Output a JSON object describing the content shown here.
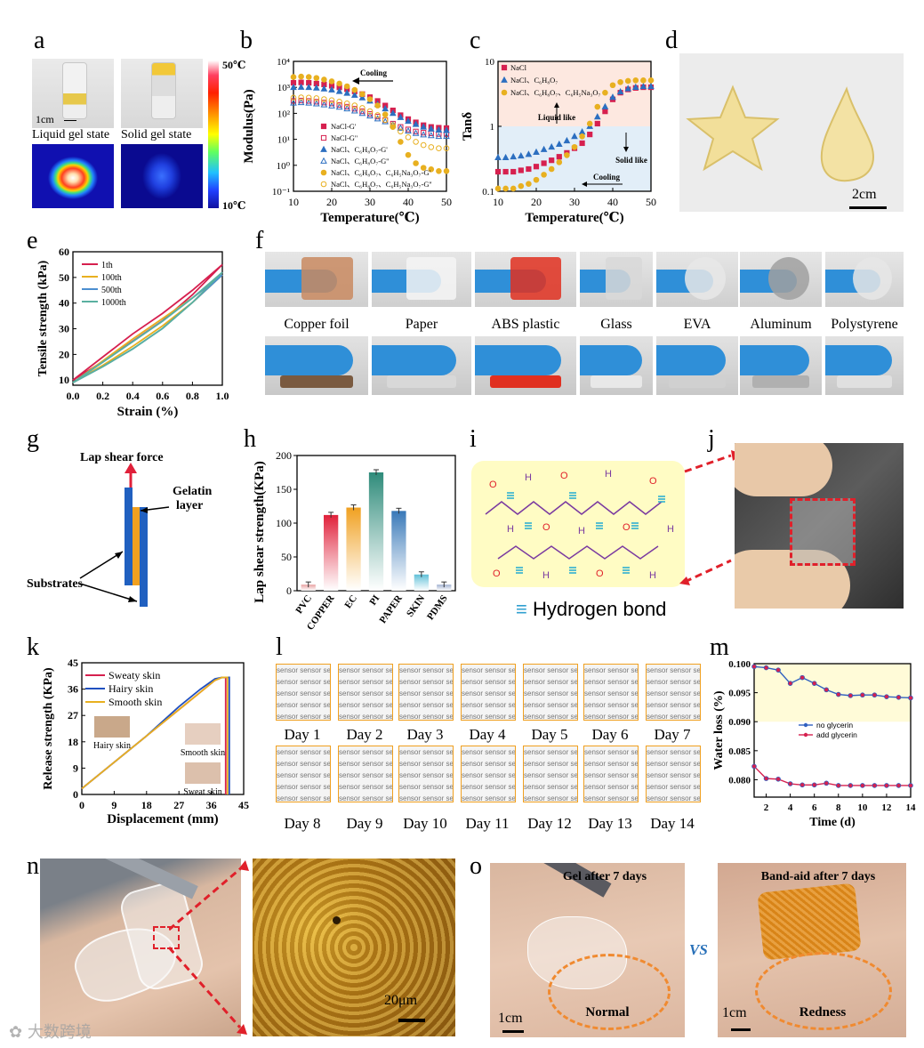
{
  "labels": {
    "a": "a",
    "b": "b",
    "c": "c",
    "d": "d",
    "e": "e",
    "f": "f",
    "g": "g",
    "h": "h",
    "i": "i",
    "j": "j",
    "k": "k",
    "l": "l",
    "m": "m",
    "n": "n",
    "o": "o"
  },
  "panel_a": {
    "scale": "1cm",
    "liquid": "Liquid gel state",
    "solid": "Solid gel state",
    "cbar_top": "50℃",
    "cbar_bottom": "10℃"
  },
  "panel_d": {
    "scale": "2cm"
  },
  "panel_f": {
    "materials": [
      "Copper foil",
      "Paper",
      "ABS plastic",
      "Glass",
      "EVA",
      "Aluminum",
      "Polystyrene"
    ]
  },
  "panel_g": {
    "force": "Lap shear force",
    "gelatin1": "Gelatin",
    "gelatin2": "layer",
    "substrates": "Substrates"
  },
  "panel_i": {
    "legend": "Hydrogen bond"
  },
  "panel_l": {
    "sensor_text": "sensor sensor se",
    "days_row1": [
      "Day 1",
      "Day 2",
      "Day 3",
      "Day 4",
      "Day 5",
      "Day 6",
      "Day 7"
    ],
    "days_row2": [
      "Day 8",
      "Day 9",
      "Day 10",
      "Day 11",
      "Day 12",
      "Day 13",
      "Day 14"
    ]
  },
  "panel_n": {
    "scale": "20μm"
  },
  "panel_o": {
    "gel_title": "Gel after 7 days",
    "gel_state": "Normal",
    "vs": "VS",
    "band_title": "Band-aid after 7 days",
    "band_state": "Redness",
    "scale": "1cm"
  },
  "watermark": "大数跨境",
  "chart_data": [
    {
      "id": "b",
      "type": "scatter",
      "xlabel": "Temperature(℃)",
      "ylabel": "Modulus(Pa)",
      "xlim": [
        10,
        50
      ],
      "ylim_log": [
        -1,
        4
      ],
      "xticks": [
        10,
        20,
        30,
        40,
        50
      ],
      "yticks": [
        "10⁻¹",
        "10⁰",
        "10¹",
        "10²",
        "10³",
        "10⁴"
      ],
      "annotation": "Cooling",
      "x": [
        10,
        12,
        14,
        16,
        18,
        20,
        22,
        24,
        26,
        28,
        30,
        32,
        34,
        36,
        38,
        40,
        42,
        44,
        46,
        48,
        50
      ],
      "series": [
        {
          "name": "NaCl-G'",
          "color": "#d6204f",
          "marker": "square",
          "values": [
            1500,
            1550,
            1500,
            1400,
            1300,
            1150,
            1000,
            850,
            700,
            550,
            420,
            300,
            200,
            130,
            85,
            60,
            45,
            35,
            30,
            28,
            27
          ]
        },
        {
          "name": "NaCl-G''",
          "color": "#d6204f",
          "marker": "square-open",
          "values": [
            300,
            310,
            300,
            280,
            260,
            240,
            210,
            180,
            150,
            120,
            95,
            75,
            55,
            40,
            30,
            24,
            20,
            18,
            17,
            16,
            16
          ]
        },
        {
          "name": "NaCl、C₆H₈O₇-G'",
          "color": "#2c6fc0",
          "marker": "triangle",
          "values": [
            1000,
            1020,
            1000,
            950,
            880,
            800,
            700,
            600,
            500,
            400,
            300,
            220,
            150,
            100,
            70,
            50,
            38,
            30,
            25,
            23,
            22
          ]
        },
        {
          "name": "NaCl、C₆H₈O₇-G''",
          "color": "#2c6fc0",
          "marker": "triangle-open",
          "values": [
            250,
            260,
            250,
            235,
            215,
            195,
            175,
            150,
            125,
            100,
            80,
            62,
            48,
            36,
            27,
            21,
            17,
            15,
            14,
            13,
            13
          ]
        },
        {
          "name": "NaCl、C₆H₈O₇、C₆H₅Na₃O₇-G'",
          "color": "#e8b020",
          "marker": "circle",
          "values": [
            2500,
            2600,
            2500,
            2300,
            2000,
            1700,
            1400,
            1100,
            800,
            550,
            350,
            200,
            90,
            30,
            8,
            2.5,
            1.2,
            0.8,
            0.7,
            0.6,
            0.6
          ]
        },
        {
          "name": "NaCl、C₆H₈O₇、C₆H₅Na₃O₇-G''",
          "color": "#e8b020",
          "marker": "circle-open",
          "values": [
            400,
            410,
            400,
            380,
            350,
            320,
            280,
            240,
            200,
            160,
            120,
            85,
            55,
            35,
            20,
            12,
            8,
            6,
            5,
            4.5,
            4.5
          ]
        }
      ]
    },
    {
      "id": "c",
      "type": "scatter",
      "xlabel": "Temperature(℃)",
      "ylabel": "Tanδ",
      "xlim": [
        10,
        50
      ],
      "ylim_log": [
        -1,
        1
      ],
      "xticks": [
        10,
        20,
        30,
        40,
        50
      ],
      "yticks": [
        "0.1",
        "1",
        "10"
      ],
      "annotations": [
        "Liquid like",
        "Solid like",
        "Cooling"
      ],
      "x": [
        10,
        12,
        14,
        16,
        18,
        20,
        22,
        24,
        26,
        28,
        30,
        32,
        34,
        36,
        38,
        40,
        42,
        44,
        46,
        48,
        50
      ],
      "series": [
        {
          "name": "NaCl",
          "color": "#d6204f",
          "marker": "square",
          "values": [
            0.2,
            0.2,
            0.2,
            0.21,
            0.22,
            0.24,
            0.27,
            0.3,
            0.34,
            0.39,
            0.46,
            0.55,
            0.75,
            1.1,
            1.7,
            2.6,
            3.3,
            3.7,
            3.9,
            4.0,
            4.0
          ]
        },
        {
          "name": "NaCl、C₆H₈O₇",
          "color": "#2c6fc0",
          "marker": "triangle",
          "values": [
            0.33,
            0.33,
            0.34,
            0.35,
            0.37,
            0.4,
            0.44,
            0.48,
            0.53,
            0.6,
            0.7,
            0.82,
            1.0,
            1.4,
            2.0,
            2.8,
            3.4,
            3.8,
            4.0,
            4.1,
            4.1
          ]
        },
        {
          "name": "NaCl、C₆H₈O₇、C₆H₅Na₃O₇",
          "color": "#e8b020",
          "marker": "circle",
          "values": [
            0.11,
            0.11,
            0.11,
            0.12,
            0.13,
            0.15,
            0.18,
            0.22,
            0.28,
            0.36,
            0.48,
            0.7,
            1.1,
            2.0,
            3.3,
            4.3,
            4.8,
            5.0,
            5.1,
            5.1,
            5.1
          ]
        }
      ]
    },
    {
      "id": "e",
      "type": "line",
      "xlabel": "Strain (%)",
      "ylabel": "Tensile strength (kPa)",
      "xlim": [
        0,
        1
      ],
      "ylim": [
        8,
        60
      ],
      "xticks": [
        "0.0",
        "0.2",
        "0.4",
        "0.6",
        "0.8",
        "1.0"
      ],
      "yticks": [
        10,
        20,
        30,
        40,
        50,
        60
      ],
      "series": [
        {
          "name": "1th",
          "color": "#d6204f",
          "x": [
            0,
            0.2,
            0.4,
            0.6,
            0.8,
            1.0
          ],
          "values": [
            10,
            19,
            28,
            36,
            45,
            55
          ]
        },
        {
          "name": "100th",
          "color": "#e8b020",
          "x": [
            0,
            0.2,
            0.4,
            0.6,
            0.8,
            1.0
          ],
          "values": [
            9,
            17.5,
            26,
            34,
            42,
            51
          ]
        },
        {
          "name": "500th",
          "color": "#4c8ed0",
          "x": [
            0,
            0.2,
            0.4,
            0.6,
            0.8,
            1.0
          ],
          "values": [
            9,
            17,
            25,
            33,
            42,
            51
          ]
        },
        {
          "name": "1000th",
          "color": "#5ab0a0",
          "x": [
            0,
            0.2,
            0.4,
            0.6,
            0.8,
            1.0
          ],
          "values": [
            9,
            17,
            25,
            33,
            42,
            52
          ]
        }
      ]
    },
    {
      "id": "h",
      "type": "bar",
      "ylabel": "Lap shear strength(KPa)",
      "ylim": [
        0,
        200
      ],
      "yticks": [
        0,
        50,
        100,
        150,
        200
      ],
      "categories": [
        "PVC",
        "COPPER",
        "EC",
        "PI",
        "PAPER",
        "SKIN",
        "PDMS"
      ],
      "values": [
        9,
        112,
        123,
        175,
        118,
        24,
        9
      ],
      "colors": [
        "#e8a0a0",
        "#e0203a",
        "#f0a020",
        "#2e8b7a",
        "#3878b8",
        "#60c0d8",
        "#a0b0d0"
      ]
    },
    {
      "id": "k",
      "type": "line",
      "xlabel": "Displacement (mm)",
      "ylabel": "Release strength (KPa)",
      "xlim": [
        0,
        45
      ],
      "ylim": [
        0,
        45
      ],
      "xticks": [
        0,
        9,
        18,
        27,
        36,
        45
      ],
      "yticks": [
        0,
        9,
        18,
        27,
        36,
        45
      ],
      "insets": [
        "Hairy skin",
        "Smooth skin",
        "Sweat skin"
      ],
      "series": [
        {
          "name": "Sweaty skin",
          "color": "#d6204f",
          "x": [
            0,
            9,
            18,
            27,
            33,
            37,
            39,
            40,
            40
          ],
          "values": [
            2,
            11,
            20,
            29,
            35,
            39,
            40,
            40,
            0
          ]
        },
        {
          "name": "Hairy skin",
          "color": "#2050c0",
          "x": [
            0,
            9,
            18,
            27,
            33,
            37,
            39,
            41,
            41
          ],
          "values": [
            2,
            11,
            20,
            30,
            36,
            39.5,
            40,
            40,
            0
          ]
        },
        {
          "name": "Smooth skin",
          "color": "#e8b020",
          "x": [
            0,
            9,
            18,
            27,
            33,
            37,
            39,
            40.5,
            40.5
          ],
          "values": [
            2,
            11,
            20,
            29,
            35,
            39,
            40,
            40,
            0
          ]
        }
      ]
    },
    {
      "id": "m",
      "type": "line",
      "xlabel": "Time (d)",
      "ylabel": "Water loss (%)",
      "xlim": [
        1,
        14
      ],
      "ylim": [
        0.077,
        0.1
      ],
      "xticks": [
        2,
        4,
        6,
        8,
        10,
        12,
        14
      ],
      "yticks": [
        "0.080",
        "0.085",
        "0.090",
        "0.095",
        "0.100"
      ],
      "x": [
        1,
        2,
        3,
        4,
        5,
        6,
        7,
        8,
        9,
        10,
        11,
        12,
        13,
        14
      ],
      "series": [
        {
          "name": "no glycerin",
          "color": "#3060c0",
          "values": [
            0.0995,
            0.0993,
            0.0989,
            0.0966,
            0.0976,
            0.0966,
            0.0955,
            0.0947,
            0.0945,
            0.0946,
            0.0946,
            0.0943,
            0.0942,
            0.0941
          ]
        },
        {
          "name": "add glycerin",
          "color": "#d6204f",
          "values": [
            0.0823,
            0.0802,
            0.0801,
            0.0793,
            0.0791,
            0.0791,
            0.0794,
            0.079,
            0.079,
            0.079,
            0.079,
            0.079,
            0.079,
            0.079
          ]
        }
      ]
    }
  ]
}
